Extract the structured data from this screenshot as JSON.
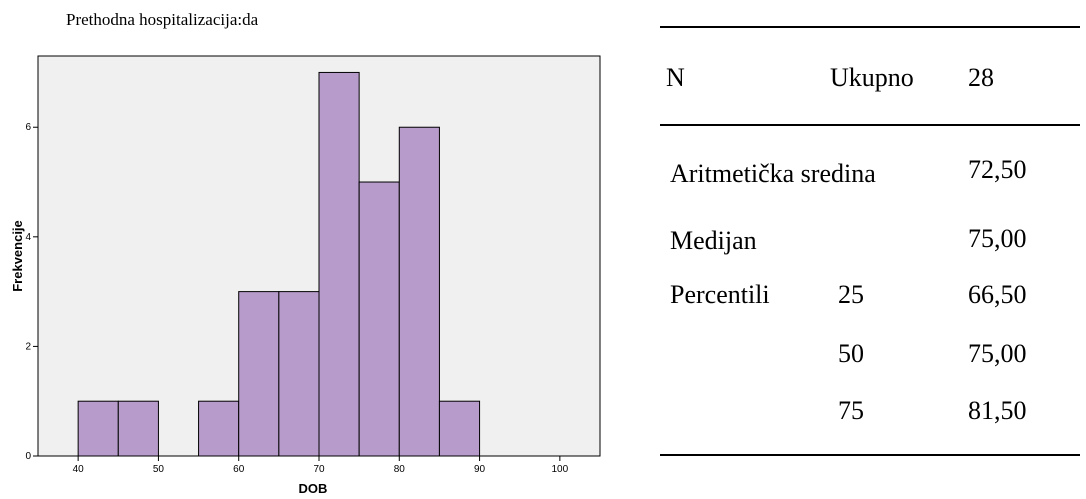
{
  "chart_data": {
    "type": "histogram",
    "title": "Prethodna hospitalizacija:da",
    "xlabel": "DOB",
    "ylabel": "Frekvencije",
    "bin_width": 5,
    "bins": [
      {
        "start": 40,
        "end": 45,
        "count": 1
      },
      {
        "start": 45,
        "end": 50,
        "count": 1
      },
      {
        "start": 50,
        "end": 55,
        "count": 0
      },
      {
        "start": 55,
        "end": 60,
        "count": 1
      },
      {
        "start": 60,
        "end": 65,
        "count": 3
      },
      {
        "start": 65,
        "end": 70,
        "count": 3
      },
      {
        "start": 70,
        "end": 75,
        "count": 7
      },
      {
        "start": 75,
        "end": 80,
        "count": 5
      },
      {
        "start": 80,
        "end": 85,
        "count": 6
      },
      {
        "start": 85,
        "end": 90,
        "count": 1
      }
    ],
    "xlim": [
      35,
      105
    ],
    "ylim": [
      0,
      7.3
    ],
    "xticks": [
      "40",
      "50",
      "60",
      "70",
      "80",
      "90",
      "100"
    ],
    "yticks": [
      "0",
      "2",
      "4",
      "6"
    ],
    "bar_color": "#b79ccb",
    "plot_bg": "#f0f0f0",
    "grid": false
  },
  "stats_table": {
    "n_label": "N",
    "total_label": "Ukupno",
    "total_value": "28",
    "mean_label": "Aritmetička sredina",
    "mean_value": "72,50",
    "median_label": "Medijan",
    "median_value": "75,00",
    "percentiles_label": "Percentili",
    "p25_label": "25",
    "p25_value": "66,50",
    "p50_label": "50",
    "p50_value": "75,00",
    "p75_label": "75",
    "p75_value": "81,50"
  }
}
